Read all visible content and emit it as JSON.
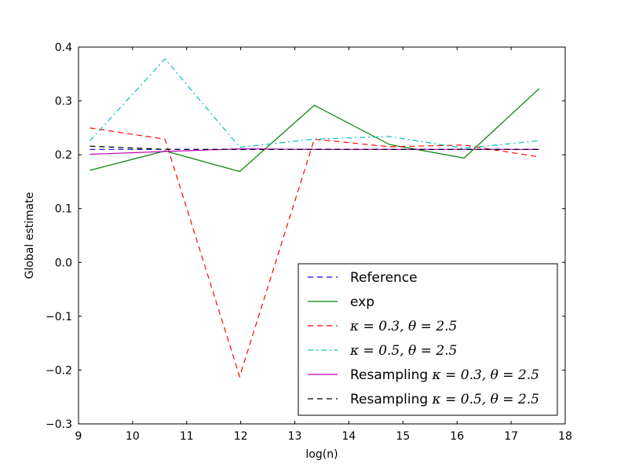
{
  "chart_data": {
    "type": "line",
    "title": "",
    "xlabel": "log(n)",
    "ylabel": "Global estimate",
    "xlim": [
      9,
      18
    ],
    "ylim": [
      -0.3,
      0.4
    ],
    "xticks": [
      9,
      10,
      11,
      12,
      13,
      14,
      15,
      16,
      17,
      18
    ],
    "yticks": [
      -0.3,
      -0.2,
      -0.1,
      0.0,
      0.1,
      0.2,
      0.3,
      0.4
    ],
    "xtick_labels": [
      "9",
      "10",
      "11",
      "12",
      "13",
      "14",
      "15",
      "16",
      "17",
      "18"
    ],
    "ytick_labels": [
      "−0.3",
      "−0.2",
      "−0.1",
      "0.0",
      "0.1",
      "0.2",
      "0.3",
      "0.4"
    ],
    "x": [
      9.21,
      10.6,
      11.98,
      13.36,
      14.75,
      16.13,
      17.52
    ],
    "legend_position": "lower-right",
    "series": [
      {
        "name": "Reference",
        "label_text": "Reference",
        "label_math": "",
        "color": "#0000ff",
        "dash": "dashed",
        "values": [
          0.21,
          0.21,
          0.21,
          0.21,
          0.21,
          0.21,
          0.21
        ]
      },
      {
        "name": "exp",
        "label_text": "exp",
        "label_math": "",
        "color": "#008000",
        "dash": "solid",
        "values": [
          0.171,
          0.207,
          0.169,
          0.292,
          0.219,
          0.194,
          0.323
        ]
      },
      {
        "name": "kappa=0.3, theta=2.5",
        "label_text": "",
        "label_math": "κ = 0.3, θ = 2.5",
        "color": "#ff0000",
        "dash": "dashed",
        "values": [
          0.25,
          0.229,
          -0.212,
          0.229,
          0.215,
          0.218,
          0.196
        ]
      },
      {
        "name": "kappa=0.5, theta=2.5",
        "label_text": "",
        "label_math": "κ = 0.5, θ = 2.5",
        "color": "#00bfbf",
        "dash": "dashdot",
        "values": [
          0.226,
          0.378,
          0.214,
          0.229,
          0.234,
          0.212,
          0.226
        ]
      },
      {
        "name": "Resampling kappa=0.3, theta=2.5",
        "label_text": "Resampling",
        "label_math": "κ = 0.3, θ = 2.5",
        "color": "#bf00bf",
        "dash": "solid",
        "values": [
          0.201,
          0.206,
          0.211,
          0.21,
          0.21,
          0.21,
          0.21
        ]
      },
      {
        "name": "Resampling kappa=0.5, theta=2.5",
        "label_text": "Resampling",
        "label_math": "κ = 0.5, θ = 2.5",
        "color": "#000000",
        "dash": "dashed",
        "values": [
          0.216,
          0.21,
          0.21,
          0.21,
          0.21,
          0.21,
          0.21
        ]
      }
    ]
  }
}
